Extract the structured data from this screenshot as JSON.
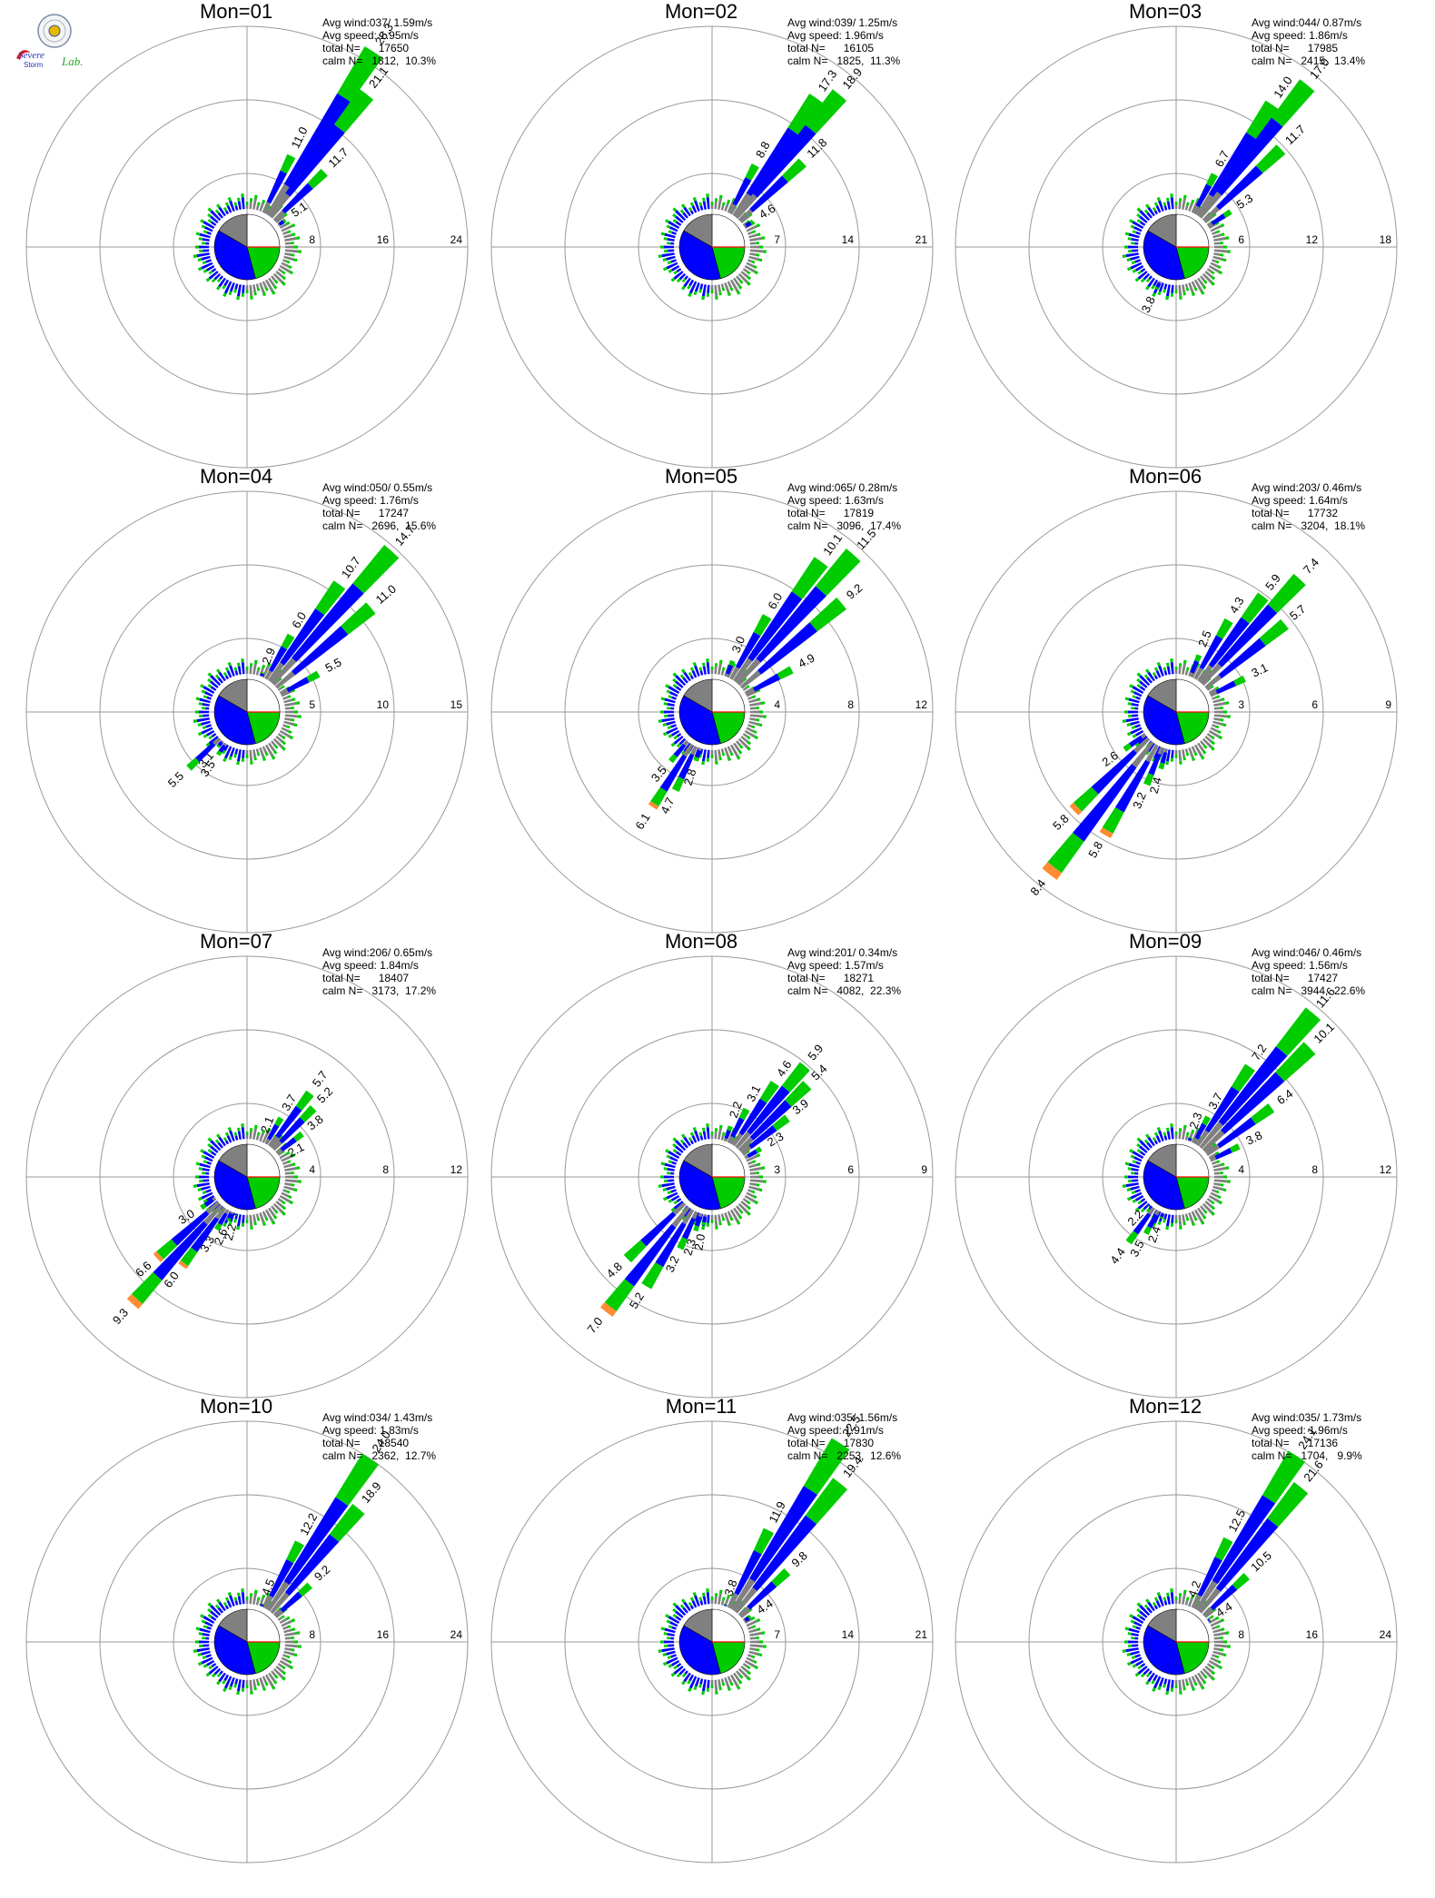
{
  "logo": {
    "text_top": "Severe",
    "text_mid": "Storm",
    "text_lab": "Lab."
  },
  "colors": {
    "gray": "#808080",
    "blue": "#0000ff",
    "green": "#00cc00",
    "orange": "#ff8c33",
    "red": "#ff0000",
    "grid": "#999999"
  },
  "chart_data": [
    {
      "type": "wind-rose",
      "title": "Mon=01",
      "rings": [
        8,
        16,
        24
      ],
      "stats": {
        "avg_wind": "Avg wind:037/ 1.59m/s",
        "avg_speed": "Avg speed: 1.95m/s",
        "total": "total N=      17650",
        "calm": "calm N=   1812,  10.3%"
      },
      "sectors": [
        {
          "dir": 22.5,
          "value": 3.3
        },
        {
          "dir": 26,
          "value": 11.0
        },
        {
          "dir": 33,
          "value": 25.3
        },
        {
          "dir": 38,
          "value": 21.1
        },
        {
          "dir": 46,
          "value": 11.7
        },
        {
          "dir": 55,
          "value": 5.1
        }
      ]
    },
    {
      "type": "wind-rose",
      "title": "Mon=02",
      "rings": [
        7,
        14,
        21
      ],
      "stats": {
        "avg_wind": "Avg wind:039/ 1.25m/s",
        "avg_speed": "Avg speed: 1.96m/s",
        "total": "total N=      16105",
        "calm": "calm N=   1825,  11.3%"
      },
      "sectors": [
        {
          "dir": 22,
          "value": 3.2
        },
        {
          "dir": 28,
          "value": 8.8
        },
        {
          "dir": 35,
          "value": 17.3
        },
        {
          "dir": 40,
          "value": 18.9
        },
        {
          "dir": 47,
          "value": 11.8
        },
        {
          "dir": 58,
          "value": 4.6
        },
        {
          "dir": 205,
          "value": 2.8
        }
      ]
    },
    {
      "type": "wind-rose",
      "title": "Mon=03",
      "rings": [
        6,
        12,
        18
      ],
      "stats": {
        "avg_wind": "Avg wind:044/ 0.87m/s",
        "avg_speed": "Avg speed: 1.86m/s",
        "total": "total N=      17985",
        "calm": "calm N=   2415,  13.4%"
      },
      "sectors": [
        {
          "dir": 22,
          "value": 2.6
        },
        {
          "dir": 28,
          "value": 6.7
        },
        {
          "dir": 34,
          "value": 14.0
        },
        {
          "dir": 39,
          "value": 17.0
        },
        {
          "dir": 47,
          "value": 11.7
        },
        {
          "dir": 57,
          "value": 5.3
        },
        {
          "dir": 200,
          "value": 2.6
        },
        {
          "dir": 205,
          "value": 3.8
        },
        {
          "dir": 210,
          "value": 3.1
        }
      ]
    },
    {
      "type": "wind-rose",
      "title": "Mon=04",
      "rings": [
        5,
        10,
        15
      ],
      "stats": {
        "avg_wind": "Avg wind:050/ 0.55m/s",
        "avg_speed": "Avg speed: 1.76m/s",
        "total": "total N=      17247",
        "calm": "calm N=   2696,  15.6%"
      },
      "sectors": [
        {
          "dir": 22,
          "value": 2.9
        },
        {
          "dir": 30,
          "value": 6.0
        },
        {
          "dir": 36,
          "value": 10.7
        },
        {
          "dir": 42,
          "value": 14.7
        },
        {
          "dir": 50,
          "value": 11.0
        },
        {
          "dir": 62,
          "value": 5.5
        },
        {
          "dir": 208,
          "value": 2.2
        },
        {
          "dir": 214,
          "value": 3.5
        },
        {
          "dir": 220,
          "value": 3.1
        },
        {
          "dir": 226,
          "value": 5.5
        }
      ]
    },
    {
      "type": "wind-rose",
      "title": "Mon=05",
      "rings": [
        4,
        8,
        12
      ],
      "stats": {
        "avg_wind": "Avg wind:065/ 0.28m/s",
        "avg_speed": "Avg speed: 1.63m/s",
        "total": "total N=      17819",
        "calm": "calm N=   3096,  17.4%"
      },
      "sectors": [
        {
          "dir": 22,
          "value": 3.0
        },
        {
          "dir": 30,
          "value": 6.0
        },
        {
          "dir": 36,
          "value": 10.1
        },
        {
          "dir": 42,
          "value": 11.5
        },
        {
          "dir": 50,
          "value": 9.2
        },
        {
          "dir": 62,
          "value": 4.9
        },
        {
          "dir": 198,
          "value": 2.8
        },
        {
          "dir": 205,
          "value": 4.7
        },
        {
          "dir": 212,
          "value": 6.1
        },
        {
          "dir": 220,
          "value": 3.5
        }
      ]
    },
    {
      "type": "wind-rose",
      "title": "Mon=06",
      "rings": [
        3,
        6,
        9
      ],
      "stats": {
        "avg_wind": "Avg wind:203/ 0.46m/s",
        "avg_speed": "Avg speed: 1.64m/s",
        "total": "total N=      17732",
        "calm": "calm N=   3204,  18.1%"
      },
      "sectors": [
        {
          "dir": 22,
          "value": 2.5
        },
        {
          "dir": 30,
          "value": 4.3
        },
        {
          "dir": 37,
          "value": 5.9
        },
        {
          "dir": 43,
          "value": 7.4
        },
        {
          "dir": 51,
          "value": 5.7
        },
        {
          "dir": 64,
          "value": 3.1
        },
        {
          "dir": 195,
          "value": 2.4
        },
        {
          "dir": 202,
          "value": 3.2
        },
        {
          "dir": 210,
          "value": 5.8
        },
        {
          "dir": 218,
          "value": 8.4
        },
        {
          "dir": 226,
          "value": 5.8
        },
        {
          "dir": 234,
          "value": 2.6
        }
      ]
    },
    {
      "type": "wind-rose",
      "title": "Mon=07",
      "rings": [
        4,
        8,
        12
      ],
      "stats": {
        "avg_wind": "Avg wind:206/ 0.65m/s",
        "avg_speed": "Avg speed: 1.84m/s",
        "total": "total N=      18407",
        "calm": "calm N=   3173,  17.2%"
      },
      "sectors": [
        {
          "dir": 22,
          "value": 2.1
        },
        {
          "dir": 30,
          "value": 3.7
        },
        {
          "dir": 37,
          "value": 5.7
        },
        {
          "dir": 44,
          "value": 5.2
        },
        {
          "dir": 52,
          "value": 3.8
        },
        {
          "dir": 62,
          "value": 2.1
        },
        {
          "dir": 196,
          "value": 2.2
        },
        {
          "dir": 203,
          "value": 2.6
        },
        {
          "dir": 210,
          "value": 3.3
        },
        {
          "dir": 216,
          "value": 6.0
        },
        {
          "dir": 222,
          "value": 9.3
        },
        {
          "dir": 228,
          "value": 6.6
        },
        {
          "dir": 236,
          "value": 3.0
        }
      ]
    },
    {
      "type": "wind-rose",
      "title": "Mon=08",
      "rings": [
        3,
        6,
        9
      ],
      "stats": {
        "avg_wind": "Avg wind:201/ 0.34m/s",
        "avg_speed": "Avg speed: 1.57m/s",
        "total": "total N=      18271",
        "calm": "calm N=   4082,  22.3%"
      },
      "sectors": [
        {
          "dir": 20,
          "value": 2.2
        },
        {
          "dir": 27,
          "value": 3.1
        },
        {
          "dir": 34,
          "value": 4.6
        },
        {
          "dir": 40,
          "value": 5.9
        },
        {
          "dir": 46,
          "value": 5.4
        },
        {
          "dir": 52,
          "value": 3.9
        },
        {
          "dir": 60,
          "value": 2.3
        },
        {
          "dir": 190,
          "value": 2.0
        },
        {
          "dir": 197,
          "value": 2.3
        },
        {
          "dir": 204,
          "value": 3.2
        },
        {
          "dir": 211,
          "value": 5.2
        },
        {
          "dir": 218,
          "value": 7.0
        },
        {
          "dir": 226,
          "value": 4.8
        }
      ]
    },
    {
      "type": "wind-rose",
      "title": "Mon=09",
      "rings": [
        4,
        8,
        12
      ],
      "stats": {
        "avg_wind": "Avg wind:046/ 0.46m/s",
        "avg_speed": "Avg speed: 1.56m/s",
        "total": "total N=      17427",
        "calm": "calm N=   3944,  22.6%"
      },
      "sectors": [
        {
          "dir": 20,
          "value": 2.3
        },
        {
          "dir": 28,
          "value": 3.7
        },
        {
          "dir": 34,
          "value": 7.2
        },
        {
          "dir": 40,
          "value": 11.6
        },
        {
          "dir": 46,
          "value": 10.1
        },
        {
          "dir": 54,
          "value": 6.4
        },
        {
          "dir": 64,
          "value": 3.8
        },
        {
          "dir": 200,
          "value": 2.4
        },
        {
          "dir": 208,
          "value": 3.5
        },
        {
          "dir": 216,
          "value": 4.4
        },
        {
          "dir": 224,
          "value": 2.2
        }
      ]
    },
    {
      "type": "wind-rose",
      "title": "Mon=10",
      "rings": [
        8,
        16,
        24
      ],
      "stats": {
        "avg_wind": "Avg wind:034/ 1.43m/s",
        "avg_speed": "Avg speed: 1.83m/s",
        "total": "total N=      18540",
        "calm": "calm N=   2362,  12.7%"
      },
      "sectors": [
        {
          "dir": 22,
          "value": 4.5
        },
        {
          "dir": 28,
          "value": 12.2
        },
        {
          "dir": 34,
          "value": 24.0
        },
        {
          "dir": 40,
          "value": 18.9
        },
        {
          "dir": 48,
          "value": 9.2
        },
        {
          "dir": 58,
          "value": 3.7
        }
      ]
    },
    {
      "type": "wind-rose",
      "title": "Mon=11",
      "rings": [
        7,
        14,
        21
      ],
      "stats": {
        "avg_wind": "Avg wind:035/ 1.56m/s",
        "avg_speed": "Avg speed: 1.91m/s",
        "total": "total N=      17830",
        "calm": "calm N=   2253,  12.6%"
      },
      "sectors": [
        {
          "dir": 20,
          "value": 3.8
        },
        {
          "dir": 27,
          "value": 11.9
        },
        {
          "dir": 33,
          "value": 22.5
        },
        {
          "dir": 39,
          "value": 19.4
        },
        {
          "dir": 47,
          "value": 9.8
        },
        {
          "dir": 57,
          "value": 4.4
        }
      ]
    },
    {
      "type": "wind-rose",
      "title": "Mon=12",
      "rings": [
        8,
        16,
        24
      ],
      "stats": {
        "avg_wind": "Avg wind:035/ 1.73m/s",
        "avg_speed": "Avg speed: 1.96m/s",
        "total": "total N=      17136",
        "calm": "calm N=   1704,   9.9%"
      },
      "sectors": [
        {
          "dir": 20,
          "value": 4.2
        },
        {
          "dir": 27,
          "value": 12.5
        },
        {
          "dir": 33,
          "value": 24.1
        },
        {
          "dir": 39,
          "value": 21.6
        },
        {
          "dir": 47,
          "value": 10.5
        },
        {
          "dir": 57,
          "value": 4.4
        }
      ]
    }
  ]
}
